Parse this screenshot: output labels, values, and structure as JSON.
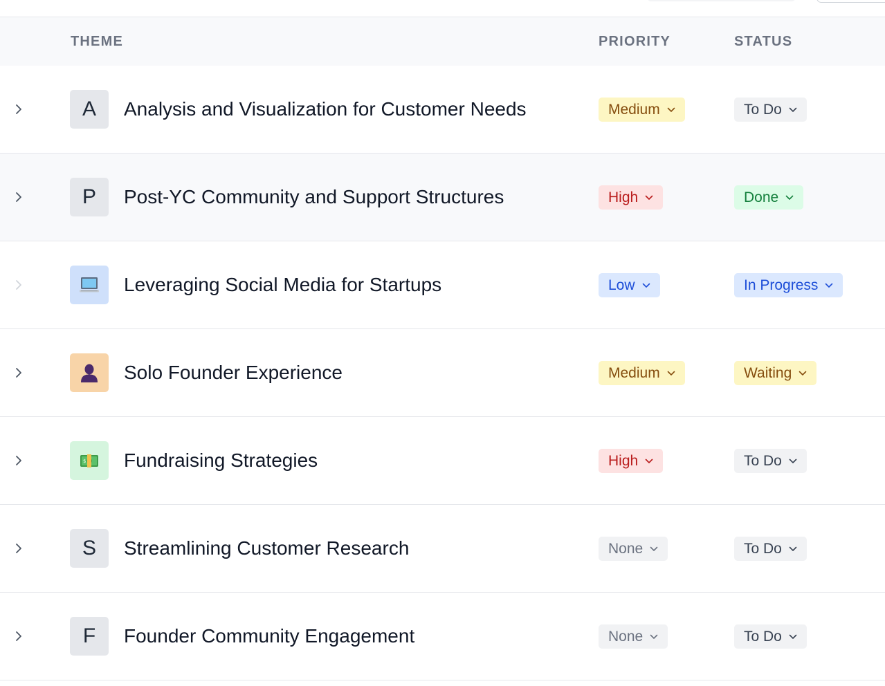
{
  "header": {
    "theme": "THEME",
    "priority": "PRIORITY",
    "status": "STATUS"
  },
  "colors": {
    "medium": "#854d0e",
    "high": "#b91c1c",
    "low": "#1d4ed8",
    "done": "#15803d"
  },
  "rows": [
    {
      "letter": "A",
      "icon": "letter",
      "title": "Analysis and Visualization for Customer Needs",
      "priority": "Medium",
      "status": "To Do"
    },
    {
      "letter": "P",
      "icon": "letter",
      "title": "Post-YC Community and Support Structures",
      "priority": "High",
      "status": "Done"
    },
    {
      "letter": "",
      "icon": "laptop-icon",
      "title": "Leveraging Social Media for Startups",
      "priority": "Low",
      "status": "In Progress"
    },
    {
      "letter": "",
      "icon": "person-silhouette-icon",
      "title": "Solo Founder Experience",
      "priority": "Medium",
      "status": "Waiting"
    },
    {
      "letter": "",
      "icon": "money-icon",
      "title": "Fundraising Strategies",
      "priority": "High",
      "status": "To Do"
    },
    {
      "letter": "S",
      "icon": "letter",
      "title": "Streamlining Customer Research",
      "priority": "None",
      "status": "To Do"
    },
    {
      "letter": "F",
      "icon": "letter",
      "title": "Founder Community Engagement",
      "priority": "None",
      "status": "To Do"
    }
  ]
}
